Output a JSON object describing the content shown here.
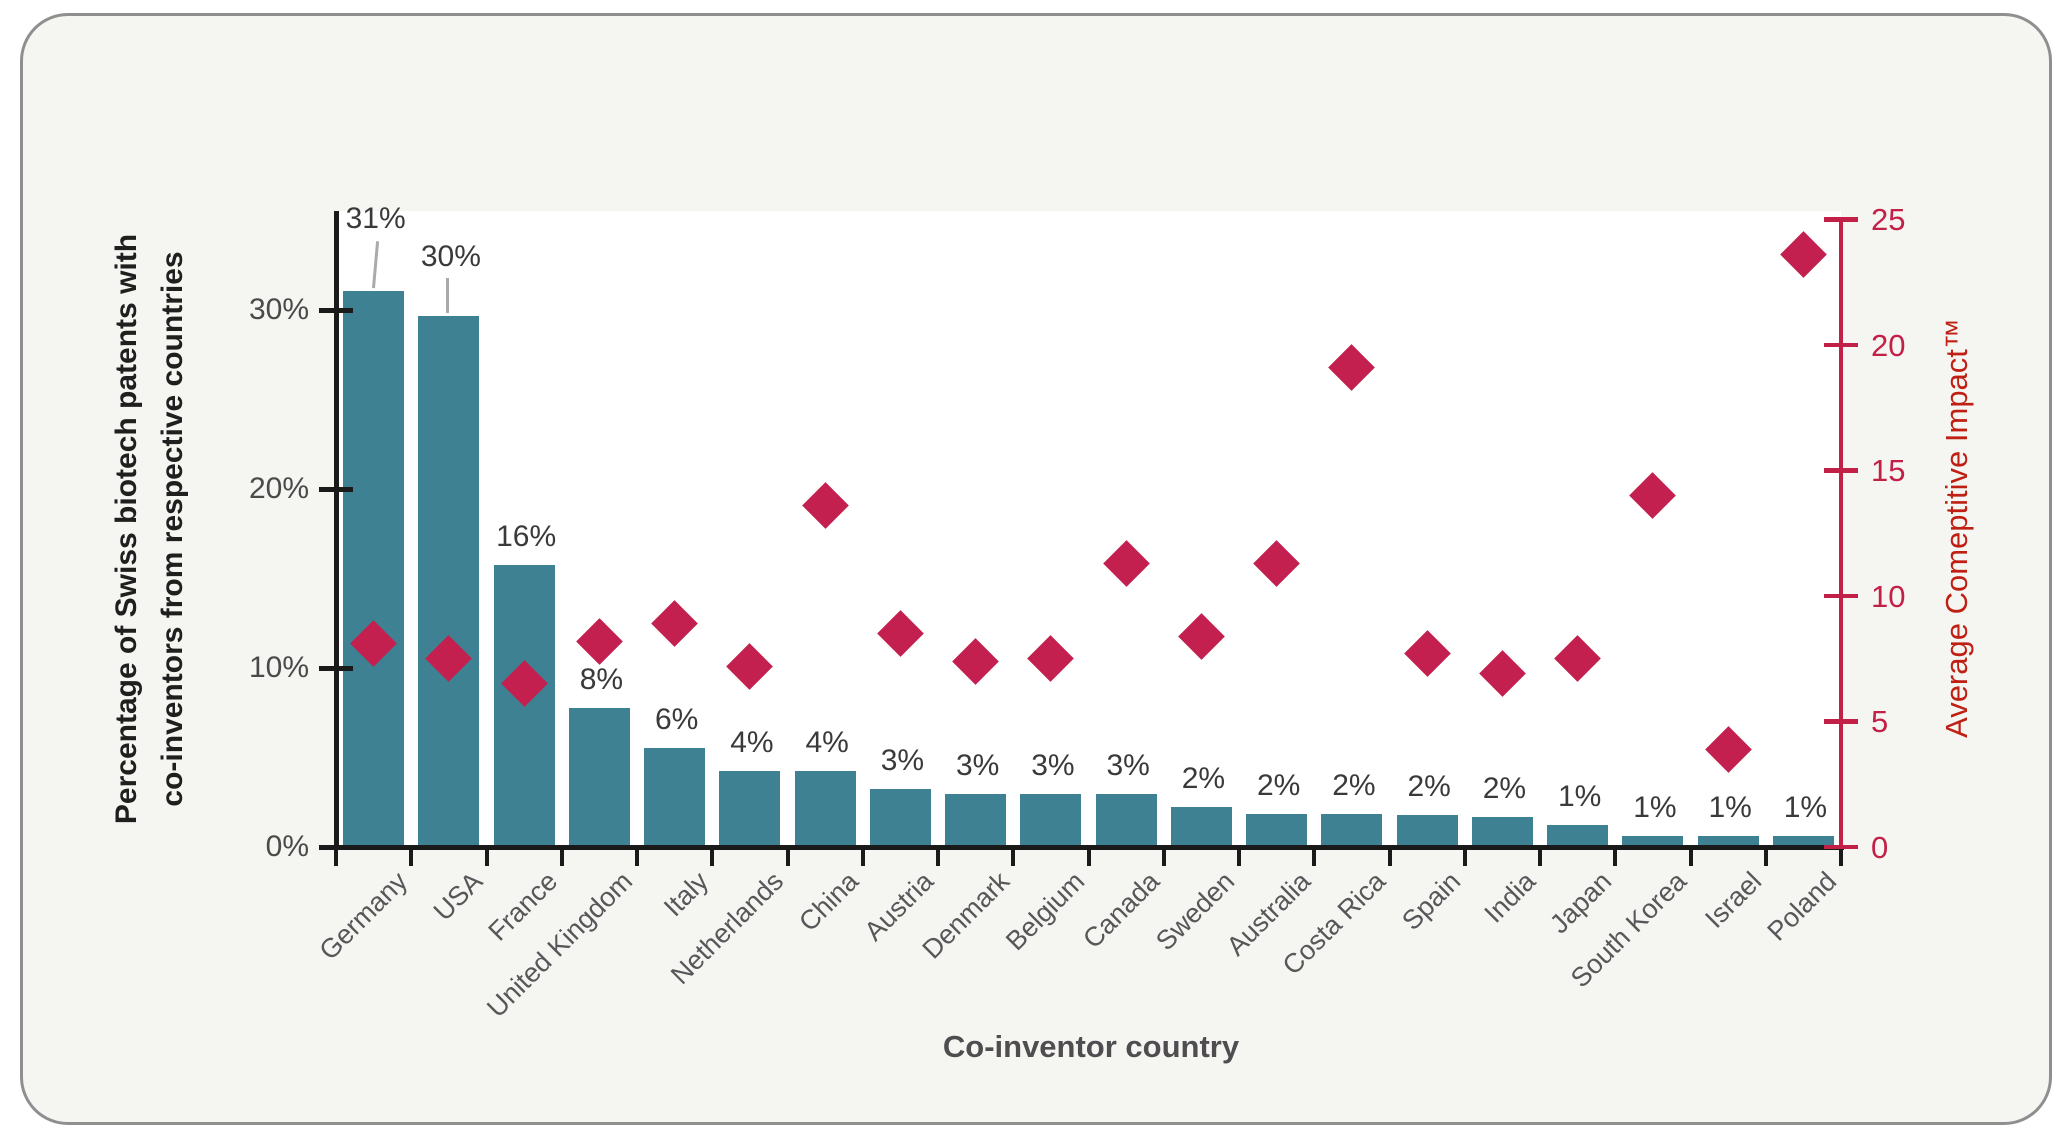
{
  "chart_data": {
    "type": "combo-bar-scatter",
    "title": "",
    "categories": [
      "Germany",
      "USA",
      "France",
      "United Kingdom",
      "Italy",
      "Netherlands",
      "China",
      "Austria",
      "Denmark",
      "Belgium",
      "Canada",
      "Sweden",
      "Australia",
      "Costa Rica",
      "Spain",
      "India",
      "Japan",
      "South Korea",
      "Israel",
      "Poland"
    ],
    "series": [
      {
        "name": "Percentage of Swiss biotech patents with co-inventors from respective countries",
        "type": "bar",
        "unit": "%",
        "values": [
          31,
          30,
          16,
          8,
          6,
          4,
          4,
          3,
          3,
          3,
          3,
          2,
          2,
          2,
          2,
          2,
          1,
          1,
          1,
          1
        ],
        "value_labels": [
          "31%",
          "30%",
          "16%",
          "8%",
          "6%",
          "4%",
          "4%",
          "3%",
          "3%",
          "3%",
          "3%",
          "2%",
          "2%",
          "2%",
          "2%",
          "2%",
          "1%",
          "1%",
          "1%",
          "1%"
        ],
        "plotted_heights_pct": [
          31.1,
          29.7,
          15.8,
          7.8,
          5.6,
          4.3,
          4.3,
          3.3,
          3.0,
          3.0,
          3.0,
          2.3,
          1.9,
          1.9,
          1.85,
          1.75,
          1.3,
          0.65,
          0.65,
          0.65
        ]
      },
      {
        "name": "Average Comeptitive Impact™",
        "type": "scatter",
        "marker": "diamond",
        "values": [
          8.1,
          7.5,
          6.5,
          8.2,
          8.9,
          7.2,
          13.6,
          8.5,
          7.4,
          7.5,
          11.3,
          8.4,
          11.3,
          19.1,
          7.7,
          6.9,
          7.5,
          14.0,
          3.9,
          23.6
        ]
      }
    ],
    "x_axis": {
      "label": "Co-inventor country"
    },
    "left_axis": {
      "label_lines": [
        "Percentage of Swiss biotech patents with",
        "co-inventors from respective countries"
      ],
      "ticks": [
        0,
        10,
        20,
        30
      ],
      "tick_labels": [
        "0%",
        "10%",
        "20%",
        "30%"
      ],
      "range": [
        0,
        35.5
      ]
    },
    "right_axis": {
      "label": "Average Comeptitive Impact™",
      "ticks": [
        0,
        5,
        10,
        15,
        20,
        25
      ],
      "tick_labels": [
        "0",
        "5",
        "10",
        "15",
        "20",
        "25"
      ],
      "range": [
        0,
        25
      ]
    },
    "grid": false,
    "legend_position": "none",
    "annotations": {
      "leader_line_categories": [
        "Germany",
        "USA"
      ]
    },
    "colors": {
      "bar": "#3e8192",
      "diamond": "#c32050",
      "right_axis": "#c22047",
      "right_axis_label": "#bf2013",
      "left_axis": "#1a1a1a",
      "value_label": "#3a3a3a",
      "category_label": "#57575a",
      "leader_line": "#aaaaaa",
      "card_bg": "#f5f5f2",
      "card_border": "#8f8f8f",
      "plot_bg": "#ffffff"
    }
  }
}
